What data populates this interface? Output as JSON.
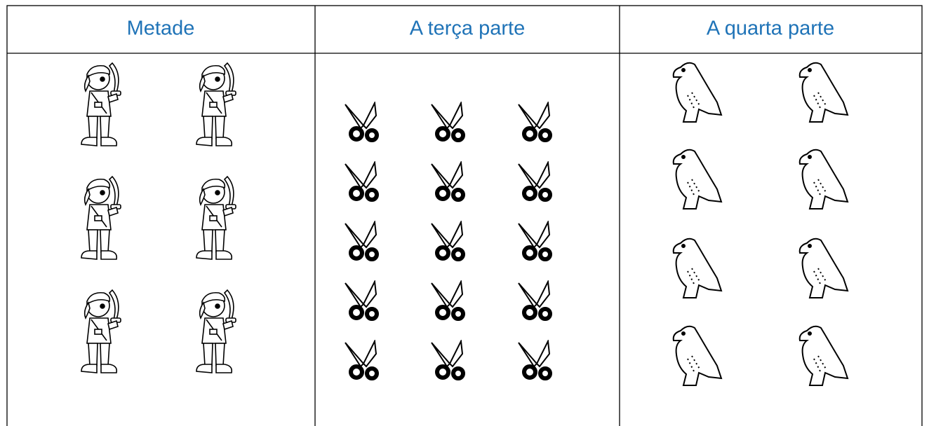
{
  "table": {
    "headers": [
      "Metade",
      "A terça parte",
      "A quarta parte"
    ]
  }
}
